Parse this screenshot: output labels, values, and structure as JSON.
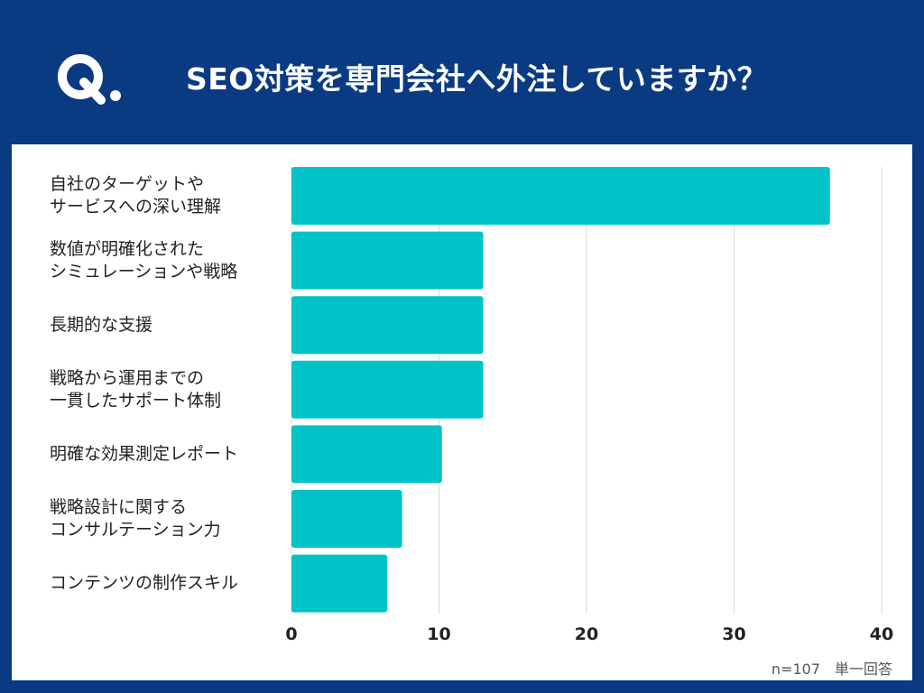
{
  "header": {
    "title": "SEO対策を専門会社へ外注していますか？",
    "q_icon": "q-logo-icon"
  },
  "footnote": "n=107　単一回答",
  "colors": {
    "background": "#0a3a82",
    "panel": "#ffffff",
    "bar": "#00c3c8",
    "grid": "#d9d9d9"
  },
  "chart_data": {
    "type": "bar",
    "orientation": "horizontal",
    "categories": [
      "自社のターゲットや\nサービスへの深い理解",
      "数値が明確化された\nシミュレーションや戦略",
      "長期的な支援",
      "戦略から運用までの\n一貫したサポート体制",
      "明確な効果測定レポート",
      "戦略設計に関する\nコンサルテーション力",
      "コンテンツの制作スキル"
    ],
    "values": [
      36.5,
      13,
      13,
      13,
      10.2,
      7.5,
      6.5
    ],
    "xlim": [
      0,
      40
    ],
    "xticks": [
      "0",
      "10",
      "20",
      "30",
      "40"
    ],
    "grid": true,
    "legend": false
  }
}
